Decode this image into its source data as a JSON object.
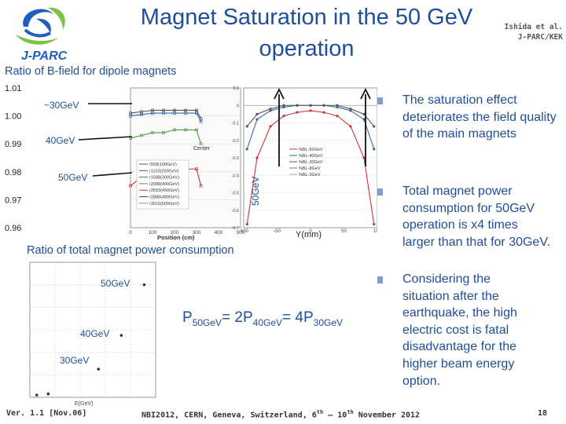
{
  "slide": {
    "title": "Magnet Saturation in the 50 GeV operation",
    "author_line1": "Ishida et al.",
    "author_line2": "J-PARC/KEK",
    "logo_text": "J-PARC",
    "section_bfield": "Ratio of B-field for dipole magnets",
    "section_power": "Ratio of total magnet power consumption",
    "bullets": [
      "The saturation effect deteriorates the field quality of the main magnets",
      "Total magnet power consumption for 50GeV operation is x4 times larger than that for 30GeV.",
      "Considering the situation after the earthquake, the high electric cost is fatal disadvantage for the higher beam energy option."
    ],
    "formula": {
      "p": "P",
      "s50": "50GeV",
      "eq1": "= 2P",
      "s40": "40GeV",
      "eq2": "= 4P",
      "s30": "30GeV"
    },
    "footer": {
      "version": "Ver. 1.1 [Nov.06]",
      "conference_a": "NBI2012, CERN, Geneva, Switzerland, 6",
      "th1": "th",
      "conference_b": " – 10",
      "th2": "th",
      "conference_c": " November 2012",
      "page": "18"
    }
  },
  "chart_data": [
    {
      "type": "line",
      "title": "",
      "xlabel": "Position (cm)",
      "ylabel": "",
      "xlim": [
        0,
        500
      ],
      "ylim": [
        0.96,
        1.01
      ],
      "y_ticks": [
        "1.01",
        "1.00",
        "0.99",
        "0.98",
        "0.97",
        "0.96"
      ],
      "x_ticks": [
        "0",
        "100",
        "200",
        "300",
        "400",
        "500"
      ],
      "annotations": [
        "~30GeV",
        "40GeV",
        "50GeV",
        "Center"
      ],
      "legend": [
        "r558(100GeV)",
        "r1103(200GeV)",
        "r1588(300GeV)",
        "r2088(400GeV)",
        "r2593(450GeV)",
        "r2886(480GeV)",
        "r3015(500GeV)"
      ],
      "series": [
        {
          "name": "r558(100GeV)",
          "color": "#555555",
          "x": [
            0,
            50,
            100,
            150,
            200,
            250,
            300,
            320
          ],
          "y": [
            1.001,
            1.0015,
            1.002,
            1.002,
            1.002,
            1.002,
            1.002,
            0.999
          ]
        },
        {
          "name": "r1103(200GeV)",
          "color": "#3366aa",
          "x": [
            0,
            50,
            100,
            150,
            200,
            250,
            300,
            320
          ],
          "y": [
            1.0,
            1.0005,
            1.001,
            1.001,
            1.001,
            1.001,
            1.001,
            0.998
          ]
        },
        {
          "name": "r1588(300GeV)",
          "color": "#559944",
          "x": [
            0,
            50,
            100,
            150,
            200,
            250,
            300,
            320
          ],
          "y": [
            0.992,
            0.993,
            0.994,
            0.994,
            0.995,
            0.995,
            0.995,
            0.99
          ]
        },
        {
          "name": "r2088(400GeV)",
          "color": "#cc3333",
          "x": [
            0,
            50,
            100,
            150,
            200,
            250,
            300,
            320
          ],
          "y": [
            0.975,
            0.978,
            0.98,
            0.98,
            0.981,
            0.981,
            0.981,
            0.975
          ]
        }
      ]
    },
    {
      "type": "line",
      "title": "",
      "xlabel": "Y(mm)",
      "ylabel": "50GeV",
      "xlim": [
        -100,
        100
      ],
      "ylim": [
        -0.7,
        0.1
      ],
      "y_ticks": [
        "0.1",
        "0",
        "-0.1",
        "-0.2",
        "-0.3",
        "-0.4",
        "-0.5",
        "-0.6",
        "-0.7"
      ],
      "x_ticks": [
        "-100",
        "-50",
        "0",
        "50",
        "100"
      ],
      "legend": [
        "%BL-50GeV",
        "%BL-40GeV",
        "%BL-30GeV",
        "%BL-8GeV",
        "%BL-3GeV"
      ],
      "series": [
        {
          "name": "%BL-50GeV",
          "color": "#cc3333",
          "x": [
            -95,
            -80,
            -60,
            -40,
            -20,
            0,
            20,
            40,
            60,
            80,
            95
          ],
          "y": [
            -0.68,
            -0.3,
            -0.12,
            -0.06,
            -0.04,
            -0.03,
            -0.04,
            -0.06,
            -0.12,
            -0.3,
            -0.68
          ]
        },
        {
          "name": "%BL-40GeV",
          "color": "#3366aa",
          "x": [
            -95,
            -80,
            -60,
            -40,
            -20,
            0,
            20,
            40,
            60,
            80,
            95
          ],
          "y": [
            -0.25,
            -0.08,
            -0.03,
            -0.01,
            0.0,
            0.0,
            0.0,
            -0.01,
            -0.03,
            -0.08,
            -0.25
          ]
        },
        {
          "name": "%BL-30GeV",
          "color": "#555555",
          "x": [
            -95,
            -80,
            -60,
            -40,
            -20,
            0,
            20,
            40,
            60,
            80,
            95
          ],
          "y": [
            -0.12,
            -0.05,
            -0.02,
            0.0,
            0.0,
            0.0,
            0.0,
            0.0,
            -0.02,
            -0.05,
            -0.12
          ]
        }
      ]
    },
    {
      "type": "scatter",
      "title": "",
      "xlabel": "E(GeV)",
      "ylabel": "",
      "xlim": [
        0,
        55
      ],
      "ylim": [
        0,
        1.2
      ],
      "annotations": [
        "50GeV",
        "40GeV",
        "30GeV"
      ],
      "x": [
        3,
        8,
        30,
        40,
        50
      ],
      "y": [
        0.02,
        0.03,
        0.25,
        0.55,
        1.0
      ]
    }
  ]
}
